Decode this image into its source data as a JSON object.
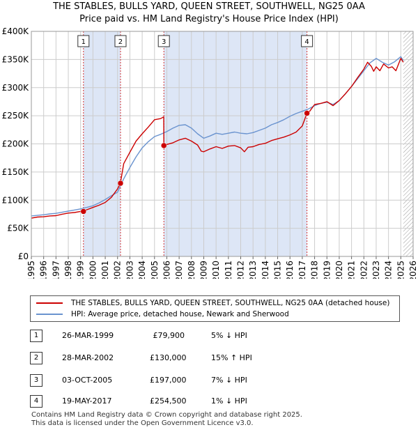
{
  "title_line1": "THE STABLES, BULLS YARD, QUEEN STREET, SOUTHWELL, NG25 0AA",
  "title_line2": "Price paid vs. HM Land Registry's House Price Index (HPI)",
  "colors": {
    "property": "#cc0000",
    "hpi": "#6a93cf",
    "shade": "#dde6f6",
    "grid": "#cccccc"
  },
  "chart_data": {
    "type": "line",
    "xlim": [
      1995,
      2026
    ],
    "ylim": [
      0,
      400000
    ],
    "x_ticks": [
      "1995",
      "1996",
      "1997",
      "1998",
      "1999",
      "2000",
      "2001",
      "2002",
      "2003",
      "2004",
      "2005",
      "2006",
      "2007",
      "2008",
      "2009",
      "2010",
      "2011",
      "2012",
      "2013",
      "2014",
      "2015",
      "2016",
      "2017",
      "2018",
      "2019",
      "2020",
      "2021",
      "2022",
      "2023",
      "2024",
      "2025",
      "2026"
    ],
    "y_ticks": [
      {
        "value": 0,
        "label": "£0"
      },
      {
        "value": 50000,
        "label": "£50K"
      },
      {
        "value": 100000,
        "label": "£100K"
      },
      {
        "value": 150000,
        "label": "£150K"
      },
      {
        "value": 200000,
        "label": "£200K"
      },
      {
        "value": 250000,
        "label": "£250K"
      },
      {
        "value": 300000,
        "label": "£300K"
      },
      {
        "value": 350000,
        "label": "£350K"
      },
      {
        "value": 400000,
        "label": "£400K"
      }
    ],
    "series": [
      {
        "name": "THE STABLES, BULLS YARD, QUEEN STREET, SOUTHWELL, NG25 0AA (detached house)",
        "color": "#cc0000",
        "x": [
          1995.0,
          1995.5,
          1996.0,
          1996.5,
          1997.0,
          1997.5,
          1998.0,
          1998.5,
          1999.0,
          1999.23,
          1999.5,
          2000.0,
          2000.5,
          2001.0,
          2001.5,
          2002.0,
          2002.23,
          2002.5,
          2003.0,
          2003.5,
          2004.0,
          2004.5,
          2005.0,
          2005.5,
          2005.75,
          2005.76,
          2006.0,
          2006.5,
          2007.0,
          2007.5,
          2008.0,
          2008.5,
          2008.8,
          2009.0,
          2009.5,
          2010.0,
          2010.5,
          2011.0,
          2011.5,
          2012.0,
          2012.3,
          2012.6,
          2013.0,
          2013.5,
          2014.0,
          2014.5,
          2015.0,
          2015.5,
          2016.0,
          2016.5,
          2017.0,
          2017.38,
          2017.6,
          2018.0,
          2018.5,
          2019.0,
          2019.5,
          2020.0,
          2020.5,
          2021.0,
          2021.5,
          2022.0,
          2022.3,
          2022.6,
          2022.8,
          2023.0,
          2023.3,
          2023.6,
          2024.0,
          2024.3,
          2024.6,
          2025.0,
          2025.2
        ],
        "values": [
          68000,
          70000,
          70500,
          72000,
          72500,
          75000,
          77000,
          78000,
          80000,
          79900,
          83000,
          87000,
          91000,
          96000,
          105000,
          120000,
          130000,
          165000,
          185000,
          205000,
          218000,
          230000,
          243000,
          245000,
          248000,
          197000,
          199000,
          202000,
          207000,
          210000,
          205000,
          198000,
          187000,
          186000,
          191000,
          195000,
          192000,
          196000,
          197000,
          193000,
          186000,
          194000,
          195000,
          199000,
          201000,
          206000,
          209000,
          212000,
          216000,
          221000,
          232000,
          254500,
          258000,
          270000,
          272000,
          275000,
          268000,
          277000,
          289000,
          302000,
          318000,
          333000,
          345000,
          338000,
          329000,
          337000,
          330000,
          342000,
          335000,
          337000,
          330000,
          352000,
          345000
        ]
      },
      {
        "name": "HPI: Average price, detached house, Newark and Sherwood",
        "color": "#6a93cf",
        "x": [
          1995.0,
          1995.5,
          1996.0,
          1996.5,
          1997.0,
          1997.5,
          1998.0,
          1998.5,
          1999.0,
          1999.5,
          2000.0,
          2000.5,
          2001.0,
          2001.5,
          2002.0,
          2002.5,
          2003.0,
          2003.5,
          2004.0,
          2004.5,
          2005.0,
          2005.5,
          2006.0,
          2006.5,
          2007.0,
          2007.5,
          2008.0,
          2008.5,
          2009.0,
          2009.5,
          2010.0,
          2010.5,
          2011.0,
          2011.5,
          2012.0,
          2012.5,
          2013.0,
          2013.5,
          2014.0,
          2014.5,
          2015.0,
          2015.5,
          2016.0,
          2016.5,
          2017.0,
          2017.5,
          2018.0,
          2018.5,
          2019.0,
          2019.5,
          2020.0,
          2020.5,
          2021.0,
          2021.5,
          2022.0,
          2022.5,
          2023.0,
          2023.5,
          2024.0,
          2024.5,
          2025.0,
          2025.2
        ],
        "values": [
          72000,
          73000,
          74000,
          75500,
          76500,
          78500,
          80500,
          82500,
          84500,
          87000,
          90000,
          95000,
          101000,
          108000,
          114000,
          138000,
          158000,
          177000,
          193000,
          204000,
          213000,
          217000,
          222000,
          228000,
          233000,
          234000,
          228000,
          218000,
          210000,
          214000,
          219000,
          217000,
          219000,
          221000,
          219000,
          218000,
          220000,
          224000,
          228000,
          234000,
          238000,
          243000,
          249000,
          254000,
          258000,
          262000,
          268000,
          272000,
          274000,
          270000,
          277000,
          289000,
          302000,
          316000,
          330000,
          344000,
          352000,
          345000,
          340000,
          346000,
          355000,
          348000
        ]
      }
    ],
    "transactions": [
      {
        "num": "1",
        "x": 1999.23,
        "price": 79900
      },
      {
        "num": "2",
        "x": 2002.24,
        "price": 130000
      },
      {
        "num": "3",
        "x": 2005.76,
        "price": 197000
      },
      {
        "num": "4",
        "x": 2017.38,
        "price": 254500
      }
    ],
    "shaded_ranges": [
      [
        1999.23,
        2002.24
      ],
      [
        2005.76,
        2017.38
      ]
    ],
    "hatched_from": 2025.2
  },
  "legend": {
    "property_label": "THE STABLES, BULLS YARD, QUEEN STREET, SOUTHWELL, NG25 0AA (detached house)",
    "hpi_label": "HPI: Average price, detached house, Newark and Sherwood"
  },
  "transactions_table": [
    {
      "num": "1",
      "date": "26-MAR-1999",
      "price": "£79,900",
      "hpi": "5% ↓ HPI"
    },
    {
      "num": "2",
      "date": "28-MAR-2002",
      "price": "£130,000",
      "hpi": "15% ↑ HPI"
    },
    {
      "num": "3",
      "date": "03-OCT-2005",
      "price": "£197,000",
      "hpi": "7% ↓ HPI"
    },
    {
      "num": "4",
      "date": "19-MAY-2017",
      "price": "£254,500",
      "hpi": "1% ↓ HPI"
    }
  ],
  "footer_line1": "Contains HM Land Registry data © Crown copyright and database right 2025.",
  "footer_line2": "This data is licensed under the Open Government Licence v3.0."
}
